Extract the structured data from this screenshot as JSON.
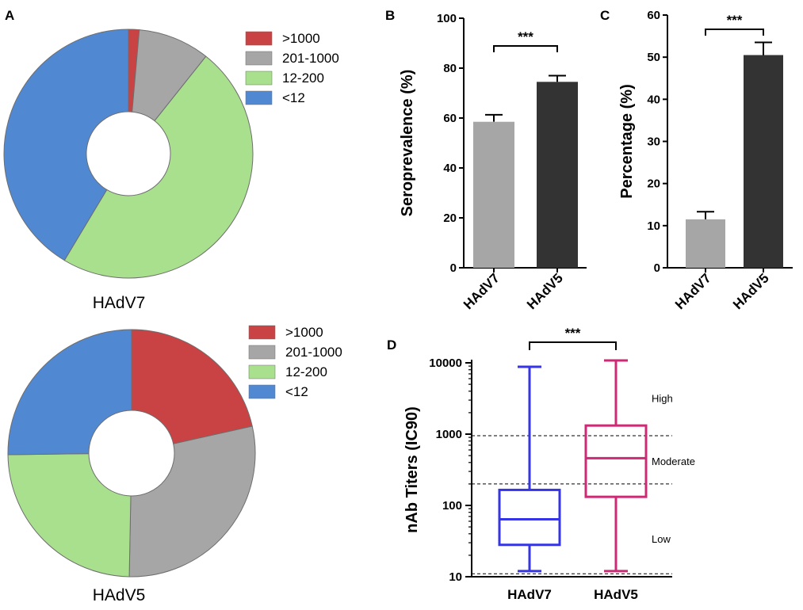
{
  "chart_data": [
    {
      "panel": "A",
      "type": "pie",
      "title": "HAdV7",
      "legend": ">1000, 201-1000, 12-200, <12",
      "categories": [
        ">1000",
        "201-1000",
        "12-200",
        "<12"
      ],
      "values": [
        1.4,
        9.3,
        47.9,
        41.4
      ],
      "colors": [
        "#c94244",
        "#a6a6a6",
        "#a9e08e",
        "#5088d2"
      ]
    },
    {
      "panel": "A",
      "type": "pie",
      "title": "HAdV5",
      "legend": ">1000, 201-1000, 12-200, <12",
      "categories": [
        ">1000",
        "201-1000",
        "12-200",
        "<12"
      ],
      "values": [
        21.5,
        28.8,
        24.5,
        25.2
      ],
      "colors": [
        "#c94244",
        "#a6a6a6",
        "#a9e08e",
        "#5088d2"
      ]
    },
    {
      "panel": "B",
      "type": "bar",
      "categories": [
        "HAdV7",
        "HAdV5"
      ],
      "values": [
        58.5,
        74.5
      ],
      "errors": [
        2.8,
        2.5
      ],
      "colors": [
        "#a6a6a6",
        "#333333"
      ],
      "ylabel": "Seroprevalence (%)",
      "xlabel": "",
      "ylim": [
        0,
        100
      ],
      "yticks": [
        "0",
        "20",
        "40",
        "60",
        "80",
        "100"
      ],
      "significance": "***"
    },
    {
      "panel": "C",
      "type": "bar",
      "categories": [
        "HAdV7",
        "HAdV5"
      ],
      "values": [
        11.5,
        50.5
      ],
      "errors": [
        1.8,
        3.0
      ],
      "colors": [
        "#a6a6a6",
        "#333333"
      ],
      "ylabel": "Percentage (%)",
      "xlabel": "",
      "ylim": [
        0,
        60
      ],
      "yticks": [
        "0",
        "10",
        "20",
        "30",
        "40",
        "50",
        "60"
      ],
      "significance": "***"
    },
    {
      "panel": "D",
      "type": "box",
      "yscale": "log",
      "categories": [
        "HAdV7",
        "HAdV5"
      ],
      "series": [
        {
          "name": "HAdV7",
          "min": 12,
          "q1": 28,
          "median": 64,
          "q3": 165,
          "max": 8800,
          "color": "#3535e6"
        },
        {
          "name": "HAdV5",
          "min": 12,
          "q1": 132,
          "median": 460,
          "q3": 1320,
          "max": 10800,
          "color": "#cc2a74"
        }
      ],
      "ylabel": "nAb Titers (IC90)",
      "ylim": [
        10,
        10000
      ],
      "yticks": [
        "10",
        "100",
        "1000",
        "10000"
      ],
      "reference_lines": [
        11,
        200,
        950
      ],
      "zone_labels": [
        "High",
        "Moderate",
        "Low"
      ],
      "significance": "***"
    }
  ],
  "panel_labels": [
    "A",
    "B",
    "C",
    "D"
  ]
}
